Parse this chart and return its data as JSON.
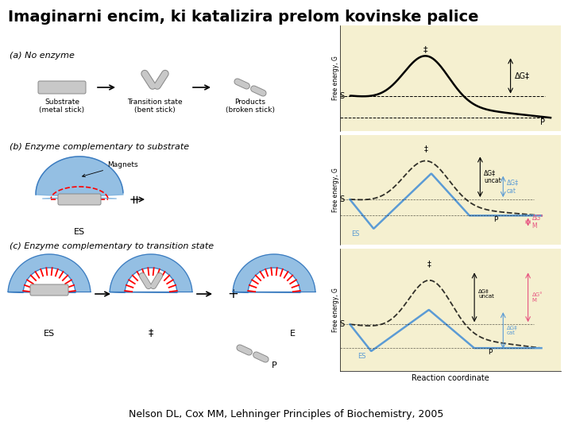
{
  "title": "Imaginarni encim, ki katalizira prelom kovinske palice",
  "title_fontsize": 14,
  "title_fontweight": "bold",
  "citation": "Nelson DL, Cox MM, Lehninger Principles of Biochemistry, 2005",
  "citation_fontsize": 9,
  "bg_color": "#ffffff",
  "panel_bg": "#f5f0d0",
  "panel_a_label": "(a) No enzyme",
  "panel_b_label": "(b) Enzyme complementary to substrate",
  "panel_c_label": "(c) Enzyme complementary to transition state",
  "substrate_label": "Substrate\n(metal stick)",
  "transition_label": "Transition state\n(bent stick)",
  "products_label": "Products\n(broken stick)",
  "magnets_label": "Magnets",
  "es_label": "ES",
  "rc_label": "Reaction coordinate",
  "free_energy_label": "Free energy, G",
  "blue_color": "#5b9bd5",
  "blue_fill": "#7ab0dd",
  "pink_color": "#e75480",
  "gray_rod": "#c0c0c0",
  "gray_dark": "#888888"
}
